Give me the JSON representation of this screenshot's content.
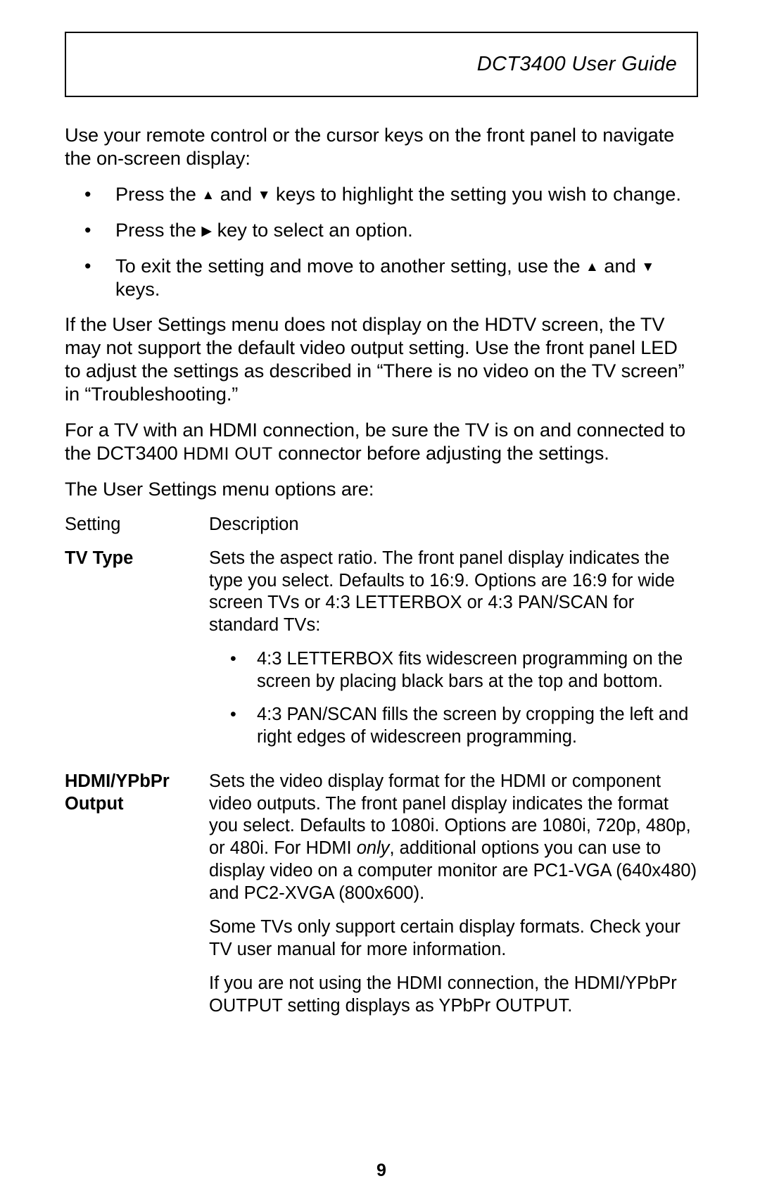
{
  "header": {
    "title": "DCT3400 User Guide"
  },
  "intro": "Use your remote control or the cursor keys on the front panel to navigate the on-screen display:",
  "bullets": {
    "b1_a": "Press the ",
    "b1_b": "  and  ",
    "b1_c": "  keys to highlight the setting you wish to change.",
    "b2_a": "Press the ",
    "b2_b": " key to select an option.",
    "b3_a": "To exit the setting and move to another setting, use the ",
    "b3_b": "  and  ",
    "b3_c": " keys."
  },
  "para2": "If the User Settings menu does not display on the HDTV screen, the TV may not support the default video output setting. Use the front panel LED to adjust the settings as described in “There is no video on the TV screen” in “Troubleshooting.”",
  "para3_a": "For a TV with an HDMI connection, be sure the TV is on and connected to the DCT3400 ",
  "para3_sc": "HDMI OUT",
  "para3_b": " connector before adjusting the settings.",
  "para4": "The User Settings menu options are:",
  "table": {
    "header": {
      "left": "Setting",
      "right": "Description"
    },
    "tvtype": {
      "label": "TV Type",
      "desc": "Sets the aspect ratio. The front panel display indicates the type you select. Defaults to 16:9. Options are 16:9 for wide screen TVs or 4:3 LETTERBOX or 4:3 PAN/SCAN for standard TVs:",
      "li1": "4:3 LETTERBOX fits widescreen programming on the screen by placing black bars at the top and bottom.",
      "li2": "4:3 PAN/SCAN fills the screen by cropping the left and right edges of widescreen programming."
    },
    "hdmi": {
      "label": "HDMI/YPbPr Output",
      "d1_a": "Sets the video display format for the HDMI or component video outputs. The front panel display indicates the format you select. Defaults to 1080i. Options are 1080i, 720p, 480p, or 480i. For HDMI ",
      "d1_i": "only",
      "d1_b": ", additional options you can use to display video on a computer monitor are PC1-VGA (640x480) and PC2-XVGA (800x600).",
      "d2": "Some TVs only support certain display formats. Check your TV user manual for more information.",
      "d3": "If you are not using the HDMI connection, the HDMI/YPbPr OUTPUT setting displays as YPbPr OUTPUT."
    }
  },
  "glyphs": {
    "up": "▲",
    "down": "▼",
    "right": "▶"
  },
  "page": "9"
}
